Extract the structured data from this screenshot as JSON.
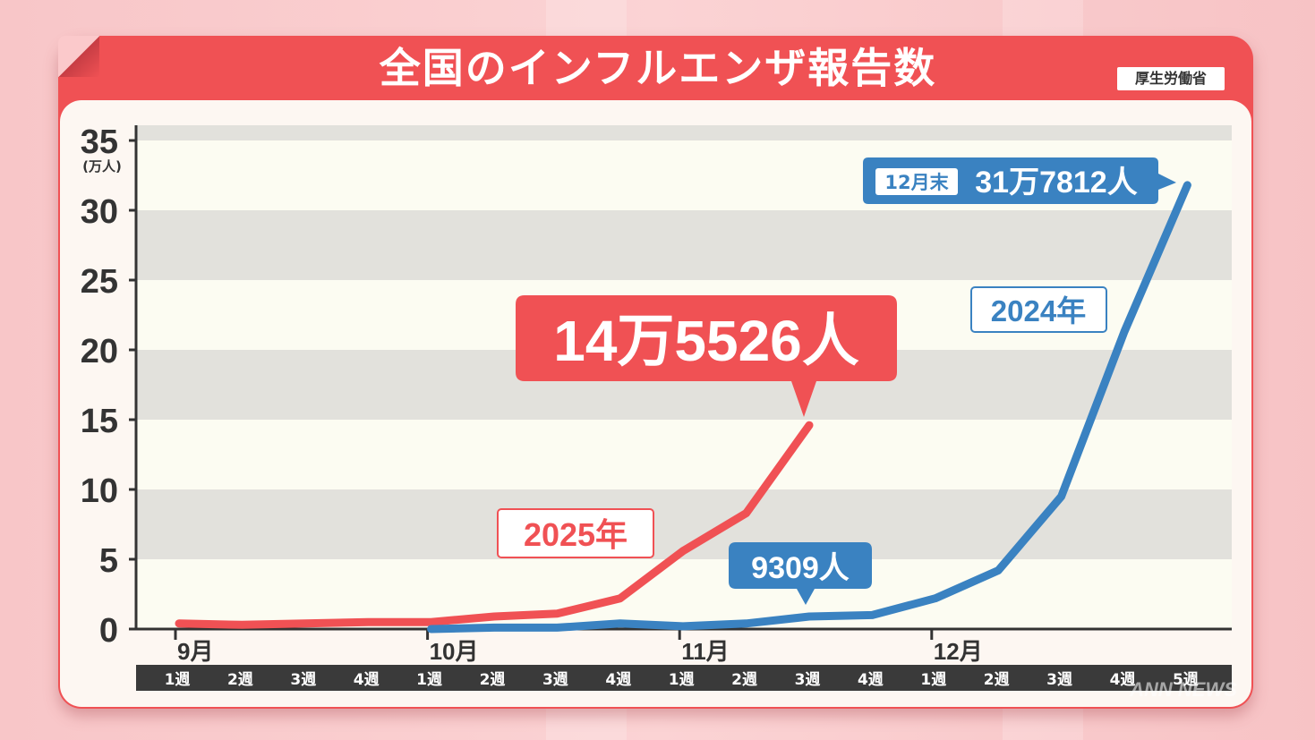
{
  "title": "全国のインフルエンザ報告数",
  "source": "厚生労働省",
  "colors": {
    "series_2025": "#f05154",
    "series_2024": "#3a82c1",
    "panel": "#f05154",
    "plot_band": "#e2e1dc",
    "plot_bg": "#fcfcf2",
    "week_bar": "#3a3a3a"
  },
  "chart_data": {
    "type": "line",
    "ylabel_unit": "(万人)",
    "ylim": [
      0,
      35
    ],
    "y_ticks": [
      0,
      5,
      10,
      15,
      20,
      25,
      30,
      35
    ],
    "month_labels": [
      {
        "label": "9月",
        "index": 0
      },
      {
        "label": "10月",
        "index": 4
      },
      {
        "label": "11月",
        "index": 8
      },
      {
        "label": "12月",
        "index": 12
      }
    ],
    "week_labels": [
      "1週",
      "2週",
      "3週",
      "4週",
      "1週",
      "2週",
      "3週",
      "4週",
      "1週",
      "2週",
      "3週",
      "4週",
      "1週",
      "2週",
      "3週",
      "4週",
      "5週"
    ],
    "series": [
      {
        "name": "2025年",
        "color": "#f05154",
        "values": [
          0.4,
          0.3,
          0.4,
          0.5,
          0.5,
          0.9,
          1.1,
          2.2,
          5.6,
          8.3,
          14.6
        ]
      },
      {
        "name": "2024年",
        "color": "#3a82c1",
        "values": [
          null,
          null,
          null,
          null,
          0.0,
          0.1,
          0.1,
          0.4,
          0.2,
          0.4,
          0.9,
          1.0,
          2.2,
          4.2,
          9.5,
          21.3,
          31.8
        ]
      }
    ],
    "annotations": [
      {
        "text": "14万5526人",
        "series": "2025年",
        "type": "callout-big"
      },
      {
        "text": "9309人",
        "series": "2024年",
        "type": "callout-small"
      },
      {
        "prefix": "12月末",
        "text": "31万7812人",
        "series": "2024年",
        "type": "callout-end"
      }
    ]
  },
  "watermark": "ANN NEWS"
}
